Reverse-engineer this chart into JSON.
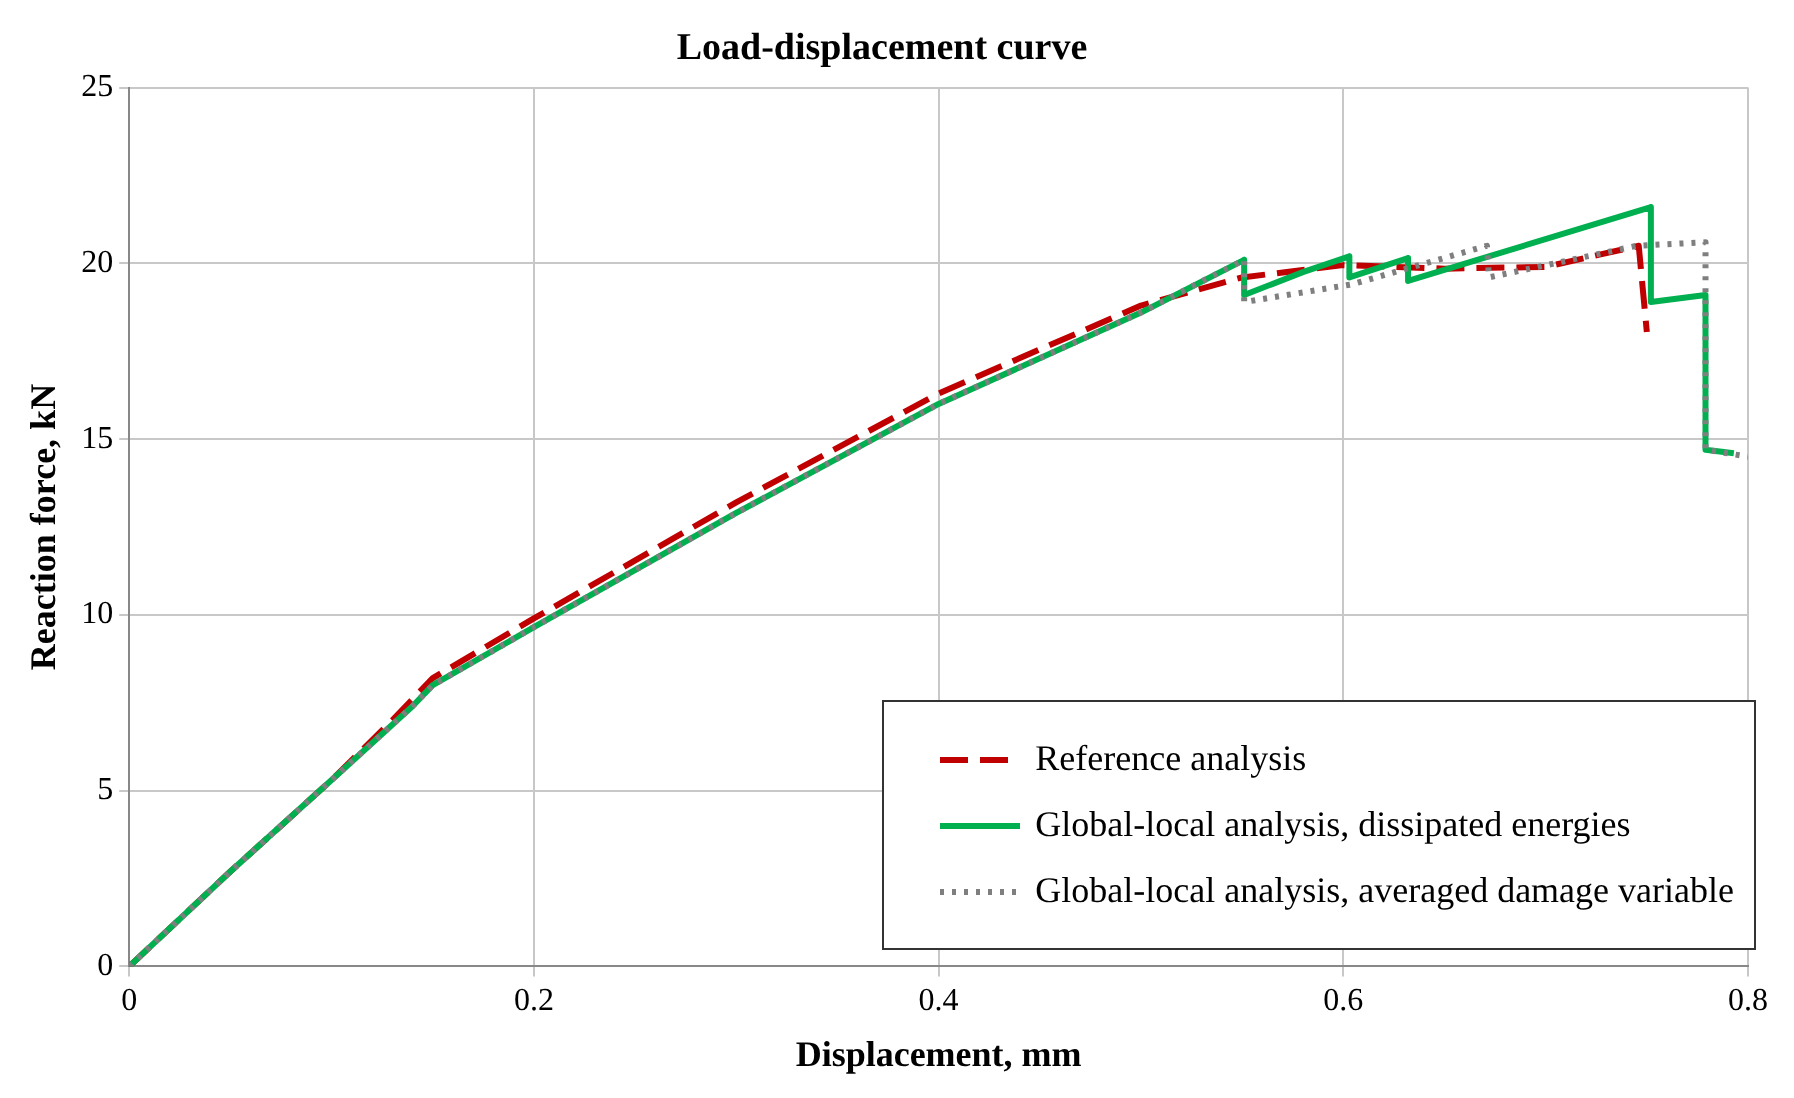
{
  "chart_data": {
    "type": "line",
    "title": "Load-displacement curve",
    "xlabel": "Displacement, mm",
    "ylabel": "Reaction force, kN",
    "xlim": [
      0,
      0.8
    ],
    "xticks": [
      0,
      0.2,
      0.4,
      0.6,
      0.8
    ],
    "ylim": [
      0,
      25
    ],
    "yticks": [
      0,
      5,
      10,
      15,
      20,
      25
    ],
    "grid": true,
    "legend": "bottom right",
    "marker": "none",
    "series": [
      {
        "name": "Reference analysis",
        "color": "#c00000",
        "line_style": "dashed",
        "x": [
          0,
          0.05,
          0.1,
          0.13,
          0.15,
          0.2,
          0.3,
          0.4,
          0.5,
          0.55,
          0.6,
          0.65,
          0.7,
          0.746,
          0.75
        ],
        "values": [
          0,
          2.7,
          5.3,
          7.0,
          8.2,
          9.9,
          13.2,
          16.3,
          18.8,
          19.6,
          19.95,
          19.85,
          19.9,
          20.5,
          18.05
        ]
      },
      {
        "name": "Global-local analysis, dissipated energies",
        "color": "#00b050",
        "line_style": "solid",
        "x": [
          0,
          0.05,
          0.1,
          0.14,
          0.15,
          0.2,
          0.3,
          0.4,
          0.5,
          0.551,
          0.551,
          0.58,
          0.603,
          0.603,
          0.632,
          0.632,
          0.752,
          0.752,
          0.779,
          0.779,
          0.793
        ],
        "values": [
          0,
          2.7,
          5.3,
          7.4,
          8.0,
          9.65,
          12.9,
          16.0,
          18.6,
          20.1,
          19.1,
          19.75,
          20.2,
          19.6,
          20.15,
          19.5,
          21.6,
          18.9,
          19.1,
          14.7,
          14.6
        ]
      },
      {
        "name": "Global-local analysis, averaged damage variable",
        "color": "#7f7f7f",
        "line_style": "dotted",
        "x": [
          0,
          0.05,
          0.1,
          0.14,
          0.15,
          0.2,
          0.3,
          0.4,
          0.5,
          0.551,
          0.551,
          0.604,
          0.671,
          0.672,
          0.745,
          0.779,
          0.779,
          0.8
        ],
        "values": [
          0,
          2.7,
          5.3,
          7.4,
          8.0,
          9.65,
          12.9,
          16.0,
          18.6,
          20.1,
          18.9,
          19.4,
          20.5,
          19.6,
          20.5,
          20.6,
          14.7,
          14.5
        ]
      }
    ]
  }
}
